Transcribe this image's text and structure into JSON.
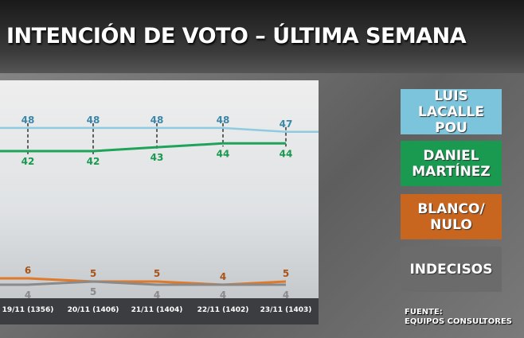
{
  "chart_data": {
    "type": "line",
    "title": "INTENCIÓN DE VOTO – ÚLTIMA SEMANA",
    "categories": [
      "19/11 (1356)",
      "20/11 (1406)",
      "21/11 (1404)",
      "22/11 (1402)",
      "23/11 (1403)"
    ],
    "series": [
      {
        "name": "LUIS LACALLE POU",
        "color": "#8fcbe0",
        "label_color": "#3a87a8",
        "values": [
          48,
          48,
          48,
          48,
          47
        ]
      },
      {
        "name": "DANIEL MARTÍNEZ",
        "color": "#1fa35a",
        "label_color": "#1a9a50",
        "values": [
          42,
          42,
          43,
          44,
          44
        ]
      },
      {
        "name": "BLANCO/ NULO",
        "color": "#e07a2a",
        "label_color": "#a85418",
        "values": [
          6,
          5,
          5,
          4,
          5
        ]
      },
      {
        "name": "INDECISOS",
        "color": "#8a8a8a",
        "label_color": "#8a8a8a",
        "values": [
          4,
          5,
          4,
          4,
          4
        ]
      }
    ],
    "legend_placement": "right"
  },
  "legend": [
    {
      "label": "LUIS\nLACALLE POU",
      "color": "#7cc4dc"
    },
    {
      "label": "DANIEL\nMARTÍNEZ",
      "color": "#1a9a50"
    },
    {
      "label": "BLANCO/\nNULO",
      "color": "#c8651e"
    },
    {
      "label": "INDECISOS",
      "color": "#6b6b6b"
    }
  ],
  "source": "FUENTE:\nEQUIPOS CONSULTORES"
}
